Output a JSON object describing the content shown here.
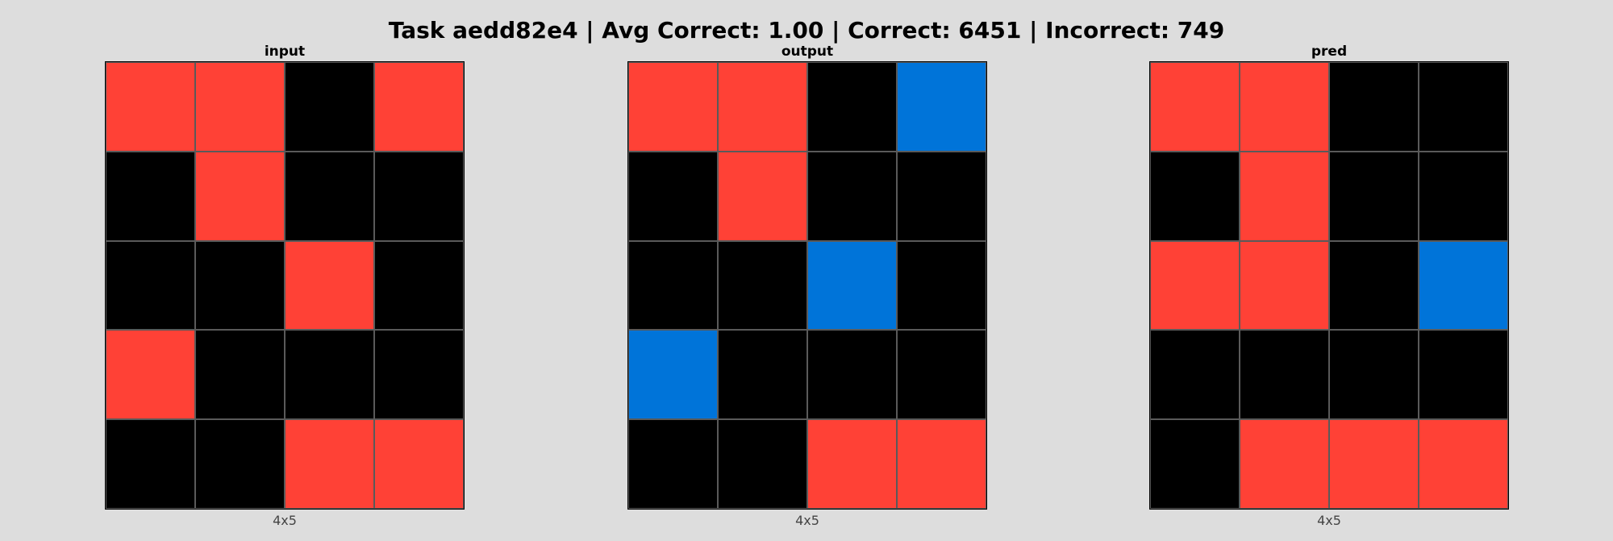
{
  "title": "Task aedd82e4 | Avg Correct: 1.00 | Correct: 6451 | Incorrect: 749",
  "palette": {
    "0": "#000000",
    "1": "#0074D9",
    "2": "#FF4136"
  },
  "panels": [
    {
      "title": "input",
      "caption": "4x5",
      "grid": [
        [
          2,
          2,
          0,
          2
        ],
        [
          0,
          2,
          0,
          0
        ],
        [
          0,
          0,
          2,
          0
        ],
        [
          2,
          0,
          0,
          0
        ],
        [
          0,
          0,
          2,
          2
        ]
      ]
    },
    {
      "title": "output",
      "caption": "4x5",
      "grid": [
        [
          2,
          2,
          0,
          1
        ],
        [
          0,
          2,
          0,
          0
        ],
        [
          0,
          0,
          1,
          0
        ],
        [
          1,
          0,
          0,
          0
        ],
        [
          0,
          0,
          2,
          2
        ]
      ]
    },
    {
      "title": "pred",
      "caption": "4x5",
      "grid": [
        [
          2,
          2,
          0,
          0
        ],
        [
          0,
          2,
          0,
          0
        ],
        [
          2,
          2,
          0,
          1
        ],
        [
          0,
          0,
          0,
          0
        ],
        [
          0,
          2,
          2,
          2
        ]
      ]
    }
  ]
}
